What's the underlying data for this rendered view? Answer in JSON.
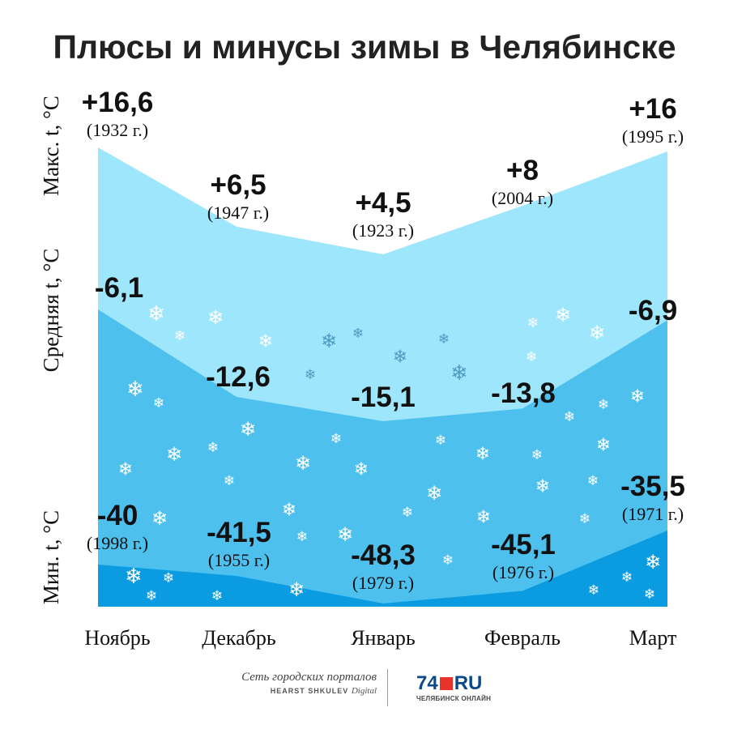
{
  "title": "Плюсы и минусы зимы в Челябинске",
  "side_labels": {
    "max": "Макс. t, °C",
    "avg": "Средняя t, °C",
    "min": "Мин. t, °C"
  },
  "chart_data": {
    "type": "area",
    "categories": [
      "Ноябрь",
      "Декабрь",
      "Январь",
      "Февраль",
      "Март"
    ],
    "series": [
      {
        "name": "Макс. t, °C",
        "values": [
          16.6,
          6.5,
          4.5,
          8,
          16
        ],
        "labels": [
          "+16,6",
          "+6,5",
          "+4,5",
          "+8",
          "+16"
        ],
        "years": [
          "(1932 г.)",
          "(1947 г.)",
          "(1923 г.)",
          "(2004 г.)",
          "(1995 г.)"
        ],
        "color": "#9ee6fb"
      },
      {
        "name": "Средняя t, °C",
        "values": [
          -6.1,
          -12.6,
          -15.1,
          -13.8,
          -6.9
        ],
        "labels": [
          "-6,1",
          "-12,6",
          "-15,1",
          "-13,8",
          "-6,9"
        ],
        "color": "#4dc0ee"
      },
      {
        "name": "Мин. t, °C",
        "values": [
          -40,
          -41.5,
          -48.3,
          -45.1,
          -35.5
        ],
        "labels": [
          "-40",
          "-41,5",
          "-48,3",
          "-45,1",
          "-35,5"
        ],
        "years": [
          "(1998 г.)",
          "(1955 г.)",
          "(1979 г.)",
          "(1976 г.)",
          "(1971 г.)"
        ],
        "color": "#0b9be0"
      }
    ]
  },
  "footer": {
    "network_line": "Сеть городских порталов",
    "hearst_line": "HEARST SHKULEV",
    "digital": "Digital",
    "logo_number": "74",
    "logo_ru": "RU",
    "logo_sub": "ЧЕЛЯБИНСК ОНЛАЙН"
  }
}
